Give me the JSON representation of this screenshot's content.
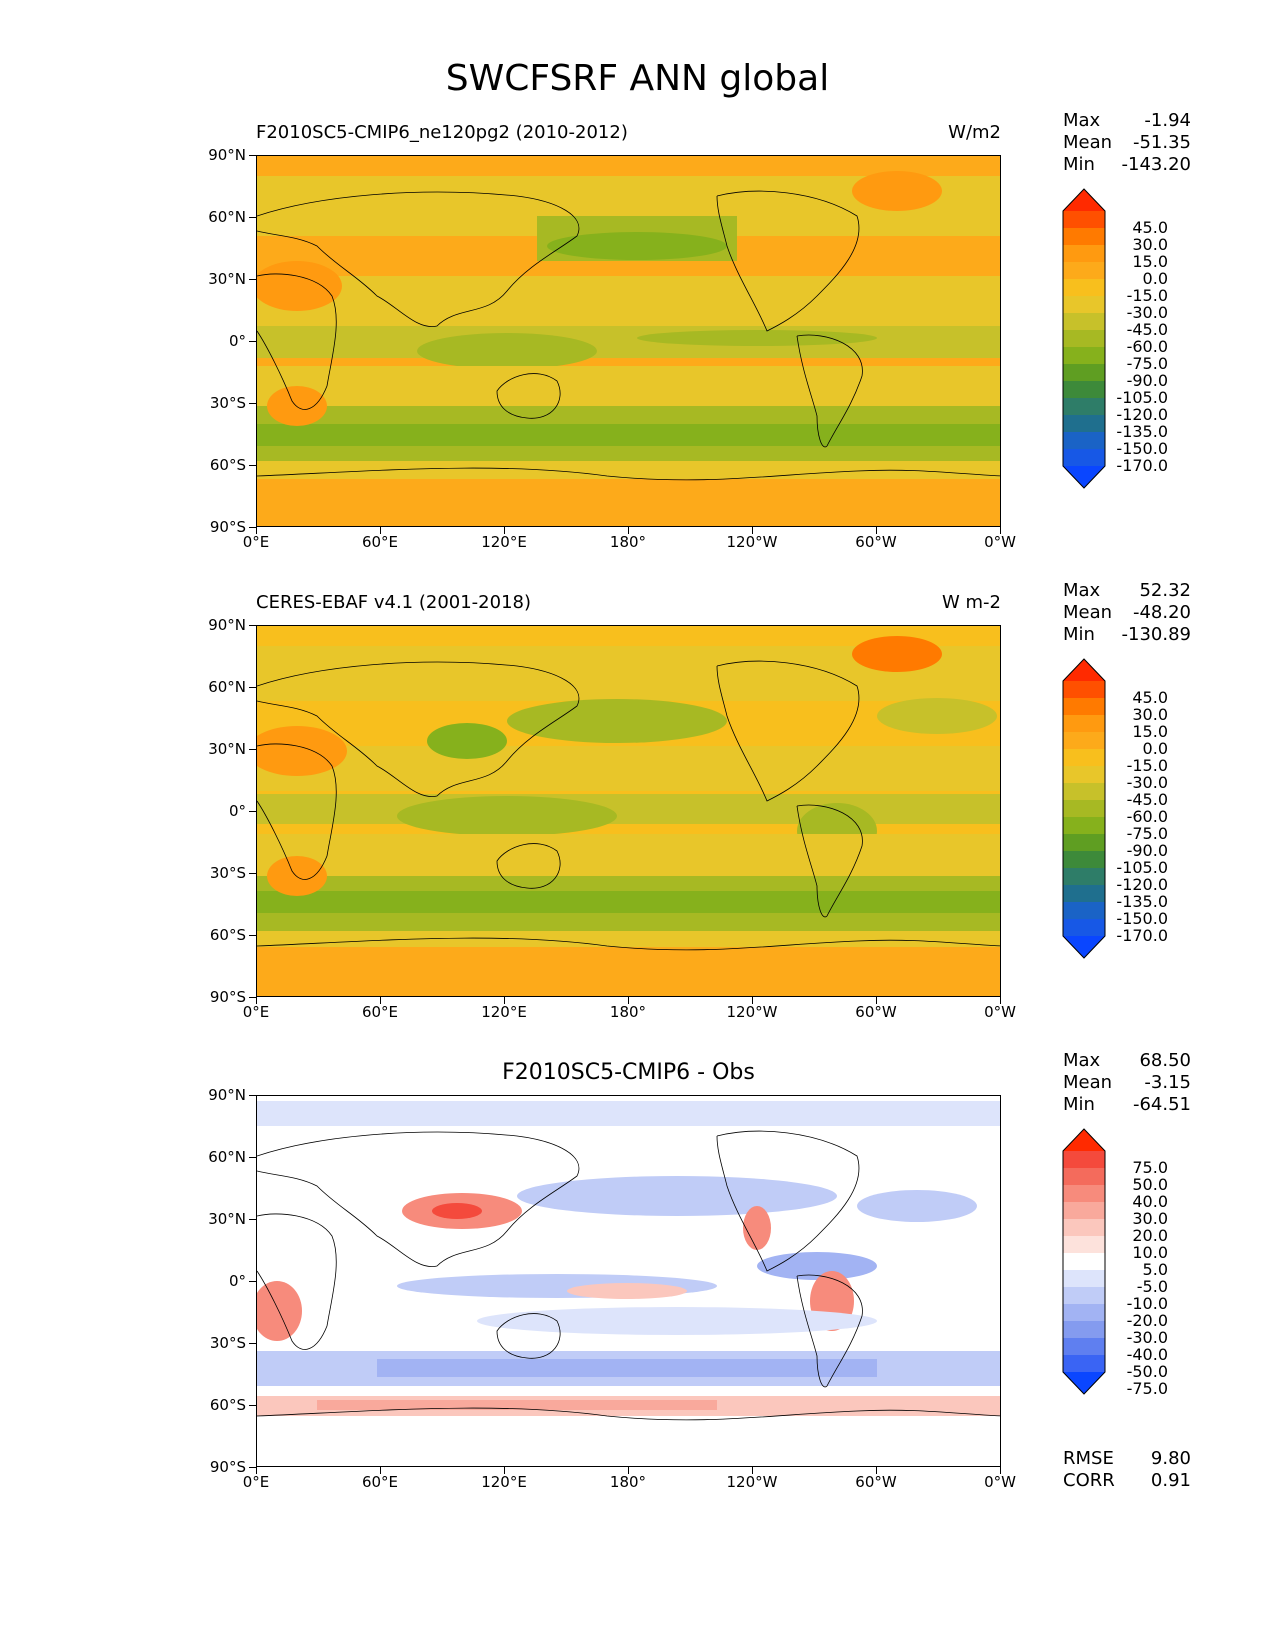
{
  "suptitle": "SWCFSRF ANN global",
  "lat_labels": [
    "90°N",
    "60°N",
    "30°N",
    "0°",
    "30°S",
    "60°S",
    "90°S"
  ],
  "lon_labels": [
    "0°E",
    "60°E",
    "120°E",
    "180°",
    "120°W",
    "60°W",
    "0°W"
  ],
  "panels": [
    {
      "title_left": "F2010SC5-CMIP6_ne120pg2 (2010-2012)",
      "title_center": "",
      "title_right": "W/m2",
      "stats": [
        {
          "label": "Max",
          "value": "-1.94"
        },
        {
          "label": "Mean",
          "value": "-51.35"
        },
        {
          "label": "Min",
          "value": "-143.20"
        }
      ],
      "colorbar_levels": [
        "45.0",
        "30.0",
        "15.0",
        "0.0",
        "-15.0",
        "-30.0",
        "-45.0",
        "-60.0",
        "-75.0",
        "-90.0",
        "-105.0",
        "-120.0",
        "-135.0",
        "-150.0",
        "-170.0"
      ],
      "colorbar_colors": [
        "#ff2a00",
        "#ff5000",
        "#ff7a00",
        "#ff9a10",
        "#fdaa1a",
        "#f8bf1d",
        "#e8c62a",
        "#c7c12a",
        "#a7b923",
        "#86b11c",
        "#5f9e22",
        "#3d8a3a",
        "#2e7d68",
        "#1f6f8e",
        "#1a63c6",
        "#1758e6",
        "#0a46ff"
      ]
    },
    {
      "title_left": "CERES-EBAF v4.1 (2001-2018)",
      "title_center": "",
      "title_right": "W m-2",
      "stats": [
        {
          "label": "Max",
          "value": "52.32"
        },
        {
          "label": "Mean",
          "value": "-48.20"
        },
        {
          "label": "Min",
          "value": "-130.89"
        }
      ],
      "colorbar_levels": [
        "45.0",
        "30.0",
        "15.0",
        "0.0",
        "-15.0",
        "-30.0",
        "-45.0",
        "-60.0",
        "-75.0",
        "-90.0",
        "-105.0",
        "-120.0",
        "-135.0",
        "-150.0",
        "-170.0"
      ],
      "colorbar_colors": [
        "#ff2a00",
        "#ff5000",
        "#ff7a00",
        "#ff9a10",
        "#fdaa1a",
        "#f8bf1d",
        "#e8c62a",
        "#c7c12a",
        "#a7b923",
        "#86b11c",
        "#5f9e22",
        "#3d8a3a",
        "#2e7d68",
        "#1f6f8e",
        "#1a63c6",
        "#1758e6",
        "#0a46ff"
      ]
    },
    {
      "title_left": "",
      "title_center": "F2010SC5-CMIP6 - Obs",
      "title_right": "",
      "stats": [
        {
          "label": "Max",
          "value": "68.50"
        },
        {
          "label": "Mean",
          "value": "-3.15"
        },
        {
          "label": "Min",
          "value": "-64.51"
        }
      ],
      "colorbar_levels": [
        "75.0",
        "50.0",
        "40.0",
        "30.0",
        "20.0",
        "10.0",
        "5.0",
        "-5.0",
        "-10.0",
        "-20.0",
        "-30.0",
        "-40.0",
        "-50.0",
        "-75.0"
      ],
      "colorbar_colors": [
        "#ff2a00",
        "#f44a3c",
        "#f46b5c",
        "#f78b7c",
        "#f9a99c",
        "#fbc7bd",
        "#fde2dc",
        "#ffffff",
        "#dde4fb",
        "#c0ccf7",
        "#a2b3f3",
        "#849bef",
        "#5f7ff0",
        "#3a64f4",
        "#0a46ff"
      ],
      "metrics": [
        {
          "label": "RMSE",
          "value": "9.80"
        },
        {
          "label": "CORR",
          "value": "0.91"
        }
      ]
    }
  ]
}
